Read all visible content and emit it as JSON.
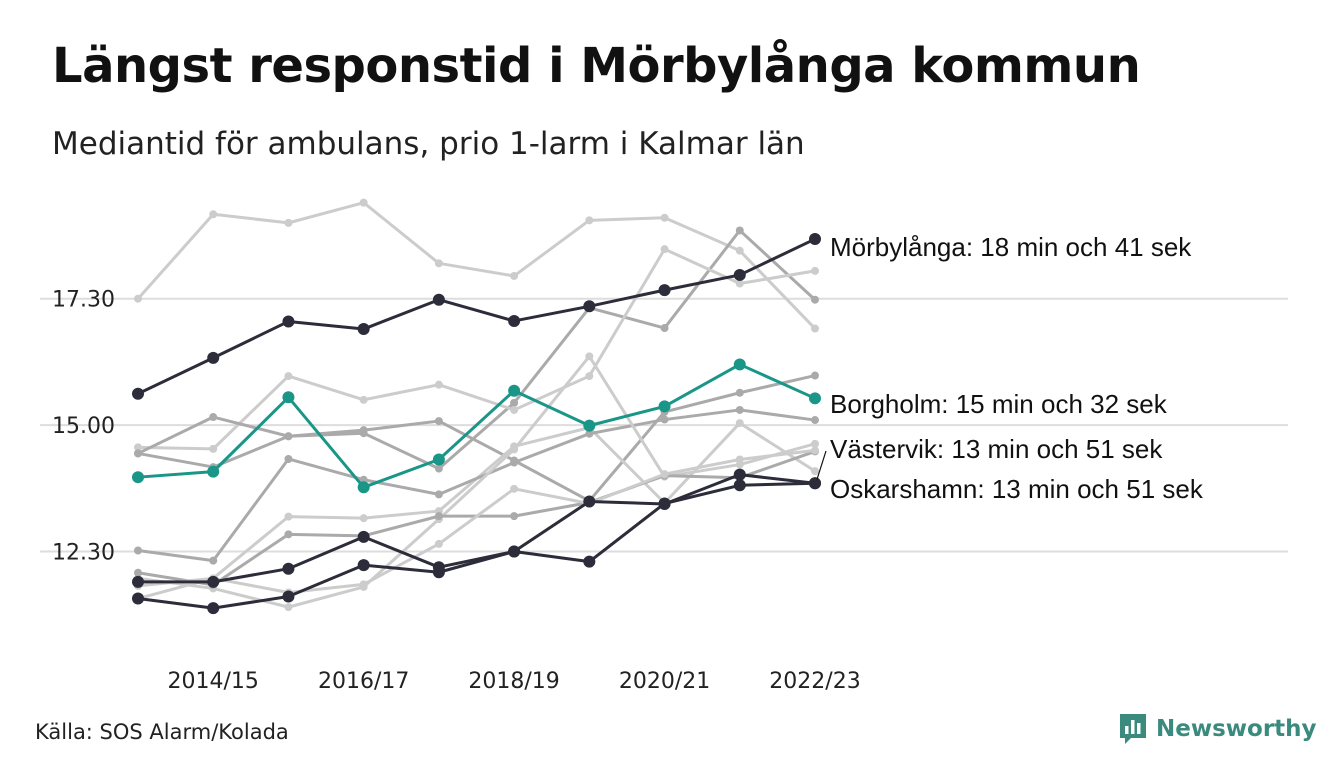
{
  "title": "Längst responstid i Mörbylånga kommun",
  "subtitle": "Mediantid för ambulans, prio 1-larm i Kalmar län",
  "source": "Källa: SOS Alarm/Kolada",
  "brand": {
    "name": "Newsworthy",
    "icon": "newsworthy-logo-icon",
    "color": "#3a8a7d"
  },
  "colors": {
    "dark": "#2c2c3a",
    "teal": "#1a9688",
    "grey": "#aaaaaa",
    "lightgrey": "#cccccc",
    "grid": "#dddddd"
  },
  "chart_data": {
    "type": "line",
    "y_unit": "minutes",
    "ylim": [
      10.75,
      19.65
    ],
    "yticks": [
      12.5,
      15.0,
      17.5
    ],
    "ytick_labels": [
      "12.30",
      "15.00",
      "17.30"
    ],
    "x": [
      "2013/14",
      "2014/15",
      "2015/16",
      "2016/17",
      "2017/18",
      "2018/19",
      "2019/20",
      "2020/21",
      "2021/22",
      "2022/23"
    ],
    "xtick_labels": [
      "2014/15",
      "2016/17",
      "2018/19",
      "2020/21",
      "2022/23"
    ],
    "grid": "horizontal",
    "series": [
      {
        "name": "Mörbylånga",
        "label": "Mörbylånga: 18 min och 41 sek",
        "color": "#2c2c3a",
        "highlight": true,
        "values": [
          15.62,
          16.33,
          17.05,
          16.9,
          17.48,
          17.06,
          17.35,
          17.67,
          17.97,
          18.68
        ]
      },
      {
        "name": "Borgholm",
        "label": "Borgholm: 15 min och 32 sek",
        "color": "#1a9688",
        "highlight": true,
        "values": [
          13.97,
          14.08,
          15.55,
          13.77,
          14.32,
          15.68,
          14.99,
          15.37,
          16.2,
          15.53
        ]
      },
      {
        "name": "Västervik",
        "label": "Västervik: 13 min och 51 sek",
        "color": "#2c2c3a",
        "highlight": true,
        "values": [
          11.9,
          11.9,
          12.16,
          12.79,
          12.19,
          12.5,
          13.49,
          13.44,
          14.02,
          13.85
        ]
      },
      {
        "name": "Oskarshamn",
        "label": "Oskarshamn: 13 min och 51 sek",
        "color": "#2c2c3a",
        "highlight": true,
        "values": [
          11.57,
          11.38,
          11.61,
          12.23,
          12.09,
          12.5,
          12.3,
          13.45,
          13.81,
          13.85
        ]
      },
      {
        "color": "#cccccc",
        "values": [
          17.5,
          19.17,
          19.0,
          19.4,
          18.2,
          17.95,
          19.05,
          19.1,
          18.45,
          16.91
        ]
      },
      {
        "color": "#aaaaaa",
        "values": [
          14.44,
          14.17,
          14.78,
          14.84,
          14.14,
          15.44,
          17.32,
          16.92,
          18.85,
          17.48
        ]
      },
      {
        "color": "#cccccc",
        "values": [
          14.56,
          14.53,
          15.97,
          15.5,
          15.8,
          15.3,
          15.97,
          18.48,
          17.8,
          18.05
        ]
      },
      {
        "color": "#aaaaaa",
        "values": [
          14.44,
          15.16,
          14.78,
          14.9,
          15.08,
          14.3,
          13.5,
          15.26,
          15.64,
          15.98
        ]
      },
      {
        "color": "#cccccc",
        "values": [
          11.57,
          11.97,
          13.19,
          13.16,
          13.3,
          14.58,
          14.95,
          13.46,
          15.04,
          14.09
        ]
      },
      {
        "color": "#aaaaaa",
        "values": [
          12.52,
          12.32,
          14.33,
          13.92,
          13.63,
          14.26,
          14.83,
          15.11,
          15.3,
          15.1
        ]
      },
      {
        "color": "#cccccc",
        "values": [
          11.97,
          11.77,
          11.4,
          11.8,
          13.14,
          14.52,
          16.36,
          13.98,
          14.22,
          14.63
        ]
      },
      {
        "color": "#aaaaaa",
        "values": [
          12.08,
          11.84,
          12.84,
          12.81,
          13.2,
          13.2,
          13.47,
          14.0,
          13.96,
          14.48
        ]
      },
      {
        "color": "#cccccc",
        "values": [
          11.82,
          11.97,
          11.69,
          11.85,
          12.65,
          13.74,
          13.45,
          14.03,
          14.32,
          14.5
        ]
      }
    ]
  }
}
